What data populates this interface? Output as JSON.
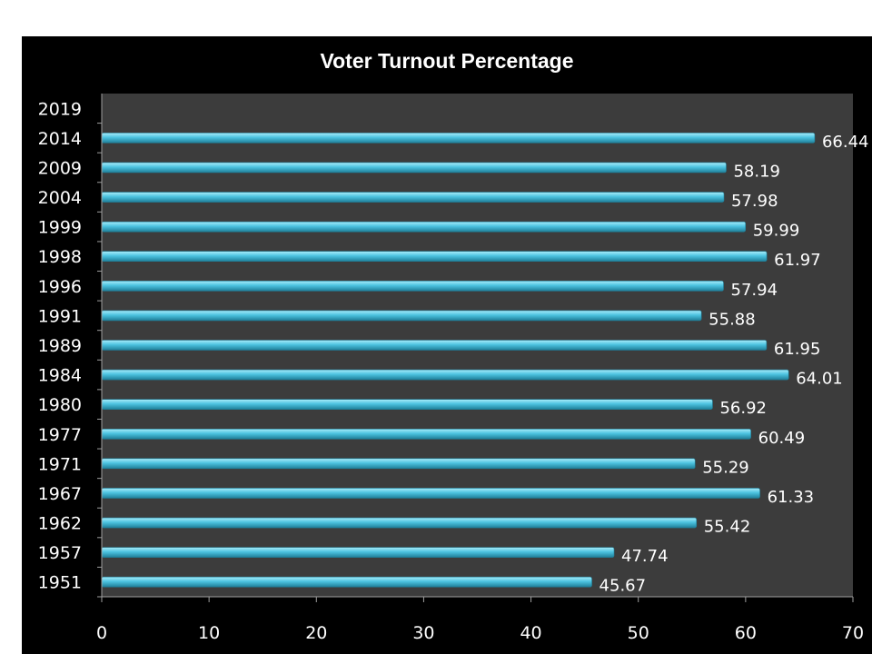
{
  "chart_data": {
    "type": "bar",
    "orientation": "horizontal",
    "title": "Voter Turnout Percentage",
    "xlabel": "",
    "ylabel": "",
    "categories": [
      "1951",
      "1957",
      "1962",
      "1967",
      "1971",
      "1977",
      "1980",
      "1984",
      "1989",
      "1991",
      "1996",
      "1998",
      "1999",
      "2004",
      "2009",
      "2014",
      "2019"
    ],
    "values": [
      45.67,
      47.74,
      55.42,
      61.33,
      55.29,
      60.49,
      56.92,
      64.01,
      61.95,
      55.88,
      57.94,
      61.97,
      59.99,
      57.98,
      58.19,
      66.44,
      null
    ],
    "data_labels": [
      "45.67",
      "47.74",
      "55.42",
      "61.33",
      "55.29",
      "60.49",
      "56.92",
      "64.01",
      "61.95",
      "55.88",
      "57.94",
      "61.97",
      "59.99",
      "57.98",
      "58.19",
      "66.44",
      ""
    ],
    "xlim": [
      0,
      70
    ],
    "xticks": [
      0,
      10,
      20,
      30,
      40,
      50,
      60,
      70
    ],
    "grid": false,
    "legend": "none",
    "colors": {
      "frame": "#000000",
      "plot_area": "#3c3c3c",
      "bar": "#4cc3e0",
      "bar_highlight": "#a8ecfa",
      "bar_shadow": "#1f7f99",
      "text": "#ffffff",
      "axis": "#a0a0a0"
    }
  }
}
